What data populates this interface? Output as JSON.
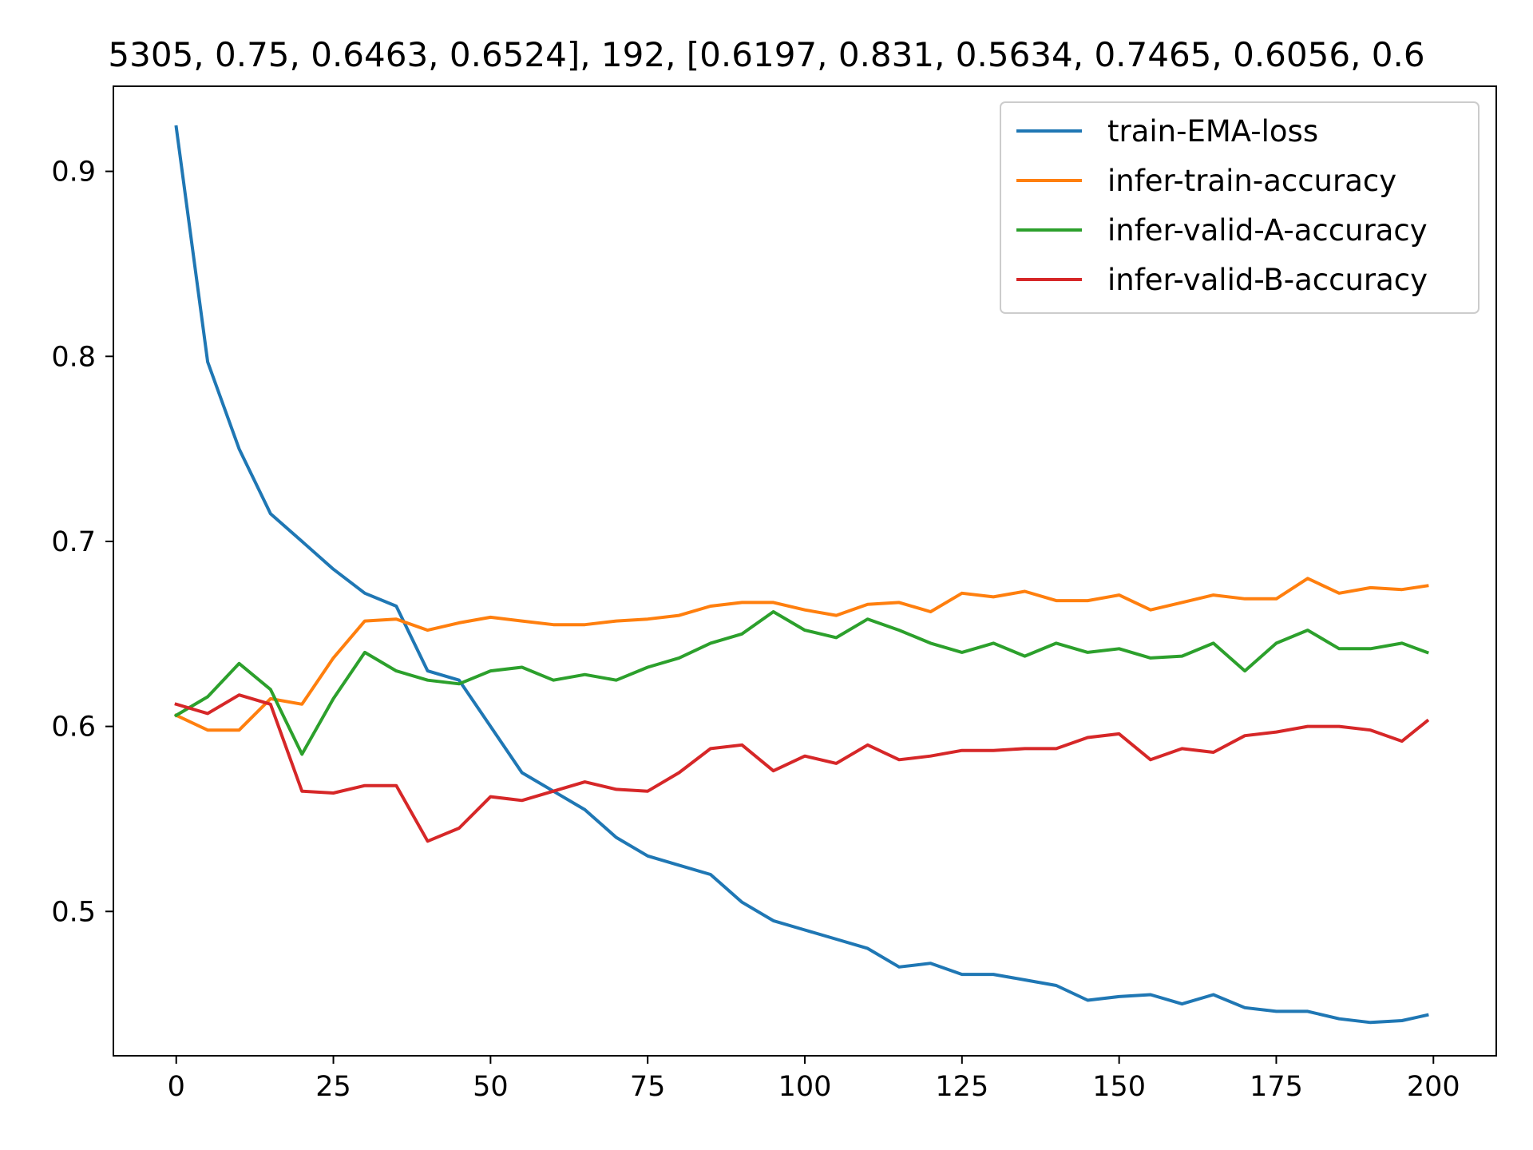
{
  "chart_data": {
    "type": "line",
    "title": "5305, 0.75, 0.6463, 0.6524], 192, [0.6197, 0.831, 0.5634, 0.7465, 0.6056, 0.6",
    "xlabel": "",
    "ylabel": "",
    "xlim": [
      -10,
      210
    ],
    "ylim": [
      0.422,
      0.946
    ],
    "xticks": [
      0,
      25,
      50,
      75,
      100,
      125,
      150,
      175,
      200
    ],
    "yticks": [
      0.5,
      0.6,
      0.7,
      0.8,
      0.9
    ],
    "xtick_labels": [
      "0",
      "25",
      "50",
      "75",
      "100",
      "125",
      "150",
      "175",
      "200"
    ],
    "ytick_labels": [
      "0.5",
      "0.6",
      "0.7",
      "0.8",
      "0.9"
    ],
    "grid": false,
    "legend_position": "top-right",
    "x": [
      0,
      5,
      10,
      15,
      20,
      25,
      30,
      35,
      40,
      45,
      50,
      55,
      60,
      65,
      70,
      75,
      80,
      85,
      90,
      95,
      100,
      105,
      110,
      115,
      120,
      125,
      130,
      135,
      140,
      145,
      150,
      155,
      160,
      165,
      170,
      175,
      180,
      185,
      190,
      195,
      199
    ],
    "series": [
      {
        "name": "train-EMA-loss",
        "color": "#1f77b4",
        "values": [
          0.924,
          0.797,
          0.75,
          0.715,
          0.7,
          0.685,
          0.672,
          0.665,
          0.63,
          0.625,
          0.6,
          0.575,
          0.565,
          0.555,
          0.54,
          0.53,
          0.525,
          0.52,
          0.505,
          0.495,
          0.49,
          0.485,
          0.48,
          0.47,
          0.472,
          0.466,
          0.466,
          0.463,
          0.46,
          0.452,
          0.454,
          0.455,
          0.45,
          0.455,
          0.448,
          0.446,
          0.446,
          0.442,
          0.44,
          0.441,
          0.444
        ]
      },
      {
        "name": "infer-train-accuracy",
        "color": "#ff7f0e",
        "values": [
          0.606,
          0.598,
          0.598,
          0.615,
          0.612,
          0.637,
          0.657,
          0.658,
          0.652,
          0.656,
          0.659,
          0.657,
          0.655,
          0.655,
          0.657,
          0.658,
          0.66,
          0.665,
          0.667,
          0.667,
          0.663,
          0.66,
          0.666,
          0.667,
          0.662,
          0.672,
          0.67,
          0.673,
          0.668,
          0.668,
          0.671,
          0.663,
          0.667,
          0.671,
          0.669,
          0.669,
          0.68,
          0.672,
          0.675,
          0.674,
          0.676
        ]
      },
      {
        "name": "infer-valid-A-accuracy",
        "color": "#2ca02c",
        "values": [
          0.606,
          0.616,
          0.634,
          0.62,
          0.585,
          0.615,
          0.64,
          0.63,
          0.625,
          0.623,
          0.63,
          0.632,
          0.625,
          0.628,
          0.625,
          0.632,
          0.637,
          0.645,
          0.65,
          0.662,
          0.652,
          0.648,
          0.658,
          0.652,
          0.645,
          0.64,
          0.645,
          0.638,
          0.645,
          0.64,
          0.642,
          0.637,
          0.638,
          0.645,
          0.63,
          0.645,
          0.652,
          0.642,
          0.642,
          0.645,
          0.64
        ]
      },
      {
        "name": "infer-valid-B-accuracy",
        "color": "#d62728",
        "values": [
          0.612,
          0.607,
          0.617,
          0.612,
          0.565,
          0.564,
          0.568,
          0.568,
          0.538,
          0.545,
          0.562,
          0.56,
          0.565,
          0.57,
          0.566,
          0.565,
          0.575,
          0.588,
          0.59,
          0.576,
          0.584,
          0.58,
          0.59,
          0.582,
          0.584,
          0.587,
          0.587,
          0.588,
          0.588,
          0.594,
          0.596,
          0.582,
          0.588,
          0.586,
          0.595,
          0.597,
          0.6,
          0.6,
          0.598,
          0.592,
          0.603
        ]
      }
    ]
  }
}
